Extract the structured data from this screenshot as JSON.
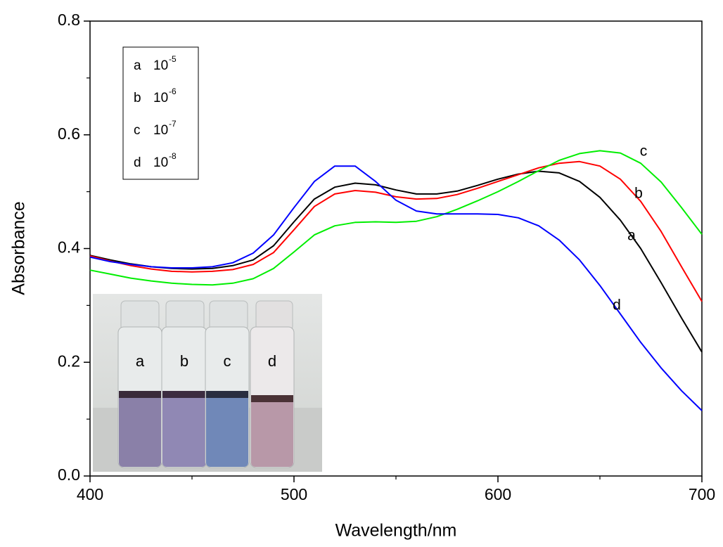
{
  "chart_data": {
    "type": "line",
    "xlabel": "Wavelength/nm",
    "ylabel": "Absorbance",
    "x": [
      400,
      410,
      420,
      430,
      440,
      450,
      460,
      470,
      480,
      490,
      500,
      510,
      520,
      530,
      540,
      550,
      560,
      570,
      580,
      590,
      600,
      610,
      620,
      630,
      640,
      650,
      660,
      670,
      680,
      690,
      700
    ],
    "series": [
      {
        "name": "a",
        "concentration": {
          "base": "10",
          "exponent": "-5"
        },
        "color": "#000000",
        "values": [
          0.388,
          0.38,
          0.373,
          0.368,
          0.365,
          0.364,
          0.365,
          0.37,
          0.38,
          0.405,
          0.447,
          0.487,
          0.508,
          0.515,
          0.512,
          0.503,
          0.496,
          0.496,
          0.501,
          0.511,
          0.522,
          0.531,
          0.536,
          0.533,
          0.518,
          0.49,
          0.45,
          0.4,
          0.34,
          0.278,
          0.218
        ]
      },
      {
        "name": "b",
        "concentration": {
          "base": "10",
          "exponent": "-6"
        },
        "color": "#ff0000",
        "values": [
          0.387,
          0.378,
          0.37,
          0.364,
          0.36,
          0.359,
          0.36,
          0.363,
          0.372,
          0.393,
          0.433,
          0.474,
          0.496,
          0.502,
          0.499,
          0.491,
          0.487,
          0.488,
          0.495,
          0.506,
          0.518,
          0.53,
          0.542,
          0.55,
          0.553,
          0.545,
          0.522,
          0.483,
          0.43,
          0.368,
          0.307
        ]
      },
      {
        "name": "c",
        "concentration": {
          "base": "10",
          "exponent": "-7"
        },
        "color": "#00ee00",
        "values": [
          0.362,
          0.355,
          0.348,
          0.343,
          0.339,
          0.337,
          0.336,
          0.339,
          0.347,
          0.365,
          0.394,
          0.424,
          0.44,
          0.446,
          0.447,
          0.446,
          0.448,
          0.456,
          0.469,
          0.484,
          0.5,
          0.518,
          0.537,
          0.555,
          0.567,
          0.572,
          0.568,
          0.55,
          0.517,
          0.472,
          0.425
        ]
      },
      {
        "name": "d",
        "concentration": {
          "base": "10",
          "exponent": "-8"
        },
        "color": "#0000ff",
        "values": [
          0.385,
          0.377,
          0.372,
          0.368,
          0.366,
          0.366,
          0.368,
          0.375,
          0.392,
          0.424,
          0.472,
          0.518,
          0.545,
          0.545,
          0.518,
          0.485,
          0.466,
          0.461,
          0.461,
          0.461,
          0.46,
          0.454,
          0.44,
          0.415,
          0.38,
          0.335,
          0.285,
          0.235,
          0.19,
          0.15,
          0.115
        ]
      }
    ],
    "xlim": [
      400,
      700
    ],
    "xticks": [
      400,
      500,
      600,
      700
    ],
    "xminor": [
      450,
      550,
      650
    ],
    "ylim": [
      0,
      0.8
    ],
    "yticks": [
      {
        "value": 0,
        "label": "0.0"
      },
      0.2,
      0.4,
      0.6,
      0.8
    ],
    "yminor": [
      0.1,
      0.3,
      0.5,
      0.7
    ],
    "legend": "upper left",
    "inset": {
      "labels": [
        "a",
        "b",
        "c",
        "d"
      ]
    }
  }
}
